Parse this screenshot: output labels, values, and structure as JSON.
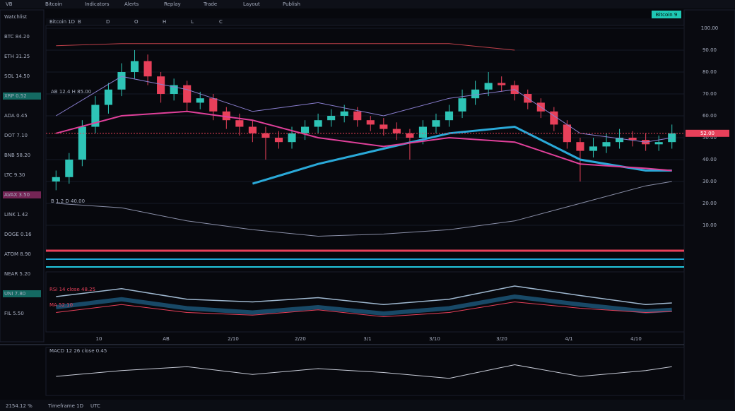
{
  "toolbar": {
    "items": [
      "VB",
      "Bitcoin",
      "Indicators",
      "Alerts",
      "Replay",
      "Trade",
      "Layout",
      "Publish"
    ],
    "badge": "Bitcoin 9"
  },
  "subbar": {
    "items": [
      "Bitcoin 1D",
      "B",
      "D",
      "O",
      "H",
      "L",
      "C"
    ]
  },
  "left_panel": {
    "rows": [
      "Watchlist",
      "BTC 84.20",
      "ETH 31.25",
      "SOL 14.50",
      "XRP 0.52",
      "ADA 0.45",
      "DOT 7.10",
      "BNB 58.20",
      "LTC 9.30",
      "AVAX 3.50",
      "LINK 1.42",
      "DOGE 0.16",
      "ATOM 8.90",
      "NEAR 5.20",
      "UNI 7.80",
      "FIL 5.50"
    ]
  },
  "chart": {
    "annotations": [
      "AB 12.4 H 85.00",
      "B 1.2 D 40.00"
    ],
    "ylim": [
      0,
      100
    ],
    "yticks": [
      {
        "value": 100,
        "label": "100.00"
      },
      {
        "value": 90,
        "label": "90.00"
      },
      {
        "value": 80,
        "label": "80.00"
      },
      {
        "value": 70,
        "label": "70.00"
      },
      {
        "value": 60,
        "label": "60.00"
      },
      {
        "value": 50,
        "label": "50.00"
      },
      {
        "value": 40,
        "label": "40.00"
      },
      {
        "value": 30,
        "label": "30.00"
      },
      {
        "value": 20,
        "label": "20.00"
      },
      {
        "value": 10,
        "label": "10.00"
      }
    ],
    "last_price": {
      "value": 52,
      "label": "52.00"
    },
    "candles": [
      [
        30,
        35,
        26,
        32
      ],
      [
        32,
        43,
        29,
        40
      ],
      [
        40,
        58,
        37,
        55
      ],
      [
        55,
        69,
        52,
        65
      ],
      [
        65,
        75,
        61,
        72
      ],
      [
        72,
        84,
        69,
        80
      ],
      [
        80,
        90,
        77,
        85
      ],
      [
        85,
        88,
        74,
        78
      ],
      [
        78,
        80,
        66,
        70
      ],
      [
        70,
        77,
        67,
        74
      ],
      [
        74,
        76,
        62,
        66
      ],
      [
        66,
        71,
        63,
        68
      ],
      [
        68,
        70,
        58,
        62
      ],
      [
        62,
        64,
        54,
        58
      ],
      [
        58,
        61,
        51,
        55
      ],
      [
        55,
        58,
        48,
        52
      ],
      [
        52,
        55,
        40,
        50
      ],
      [
        50,
        53,
        45,
        48
      ],
      [
        48,
        55,
        45,
        52
      ],
      [
        52,
        58,
        49,
        55
      ],
      [
        55,
        61,
        52,
        58
      ],
      [
        58,
        63,
        55,
        60
      ],
      [
        60,
        65,
        57,
        62
      ],
      [
        62,
        64,
        55,
        58
      ],
      [
        58,
        60,
        53,
        56
      ],
      [
        56,
        59,
        51,
        54
      ],
      [
        54,
        57,
        49,
        52
      ],
      [
        52,
        54,
        40,
        50
      ],
      [
        50,
        58,
        47,
        55
      ],
      [
        55,
        61,
        52,
        58
      ],
      [
        58,
        65,
        55,
        62
      ],
      [
        62,
        72,
        59,
        68
      ],
      [
        68,
        76,
        65,
        72
      ],
      [
        72,
        80,
        69,
        75
      ],
      [
        75,
        78,
        71,
        74
      ],
      [
        74,
        76,
        67,
        70
      ],
      [
        70,
        72,
        63,
        66
      ],
      [
        66,
        68,
        59,
        62
      ],
      [
        62,
        64,
        53,
        56
      ],
      [
        56,
        58,
        45,
        48
      ],
      [
        48,
        50,
        30,
        44
      ],
      [
        44,
        50,
        41,
        46
      ],
      [
        46,
        52,
        43,
        48
      ],
      [
        48,
        54,
        45,
        50
      ],
      [
        50,
        53,
        46,
        49
      ],
      [
        49,
        52,
        44,
        47
      ],
      [
        47,
        51,
        44,
        48
      ],
      [
        48,
        56,
        45,
        52
      ]
    ],
    "up_color": "#2ec4b6",
    "down_color": "#e8405a",
    "line_x": [
      0,
      5,
      10,
      15,
      20,
      25,
      30,
      35,
      40,
      45,
      47
    ],
    "lines": [
      {
        "color": "#2aa9d8",
        "width": 3,
        "values": [
          null,
          null,
          null,
          29,
          38,
          45,
          52,
          55,
          40,
          35,
          35
        ]
      },
      {
        "color": "#e0409a",
        "width": 2,
        "values": [
          52,
          60,
          62,
          58,
          50,
          46,
          50,
          48,
          38,
          36,
          35
        ]
      },
      {
        "color": "#c0404a",
        "width": 1,
        "values": [
          92,
          93,
          93,
          93,
          93,
          93,
          93,
          90,
          null,
          null,
          null
        ]
      },
      {
        "color": "#8a8fa8",
        "width": 1,
        "values": [
          20,
          18,
          12,
          8,
          5,
          6,
          8,
          12,
          20,
          28,
          30
        ]
      },
      {
        "color": "#8a7fd0",
        "width": 1,
        "values": [
          60,
          78,
          72,
          62,
          66,
          60,
          68,
          72,
          52,
          48,
          50
        ]
      }
    ],
    "x_labels": [
      "10",
      "AB",
      "2/10",
      "2/20",
      "3/1",
      "3/10",
      "3/20",
      "4/1",
      "4/10"
    ]
  },
  "oscillator": {
    "labels": [
      "RSI 14 close 48.25",
      "MA 52.10"
    ],
    "ylim": [
      0,
      100
    ],
    "upper": [
      60,
      75,
      55,
      50,
      58,
      45,
      55,
      80,
      62,
      45,
      48
    ],
    "lower": [
      40,
      55,
      38,
      30,
      40,
      28,
      38,
      60,
      45,
      32,
      35
    ],
    "signal": [
      30,
      45,
      30,
      25,
      35,
      22,
      30,
      50,
      38,
      30,
      32
    ],
    "fill": "#1d5a7e",
    "signal_color": "#e8405a"
  },
  "momentum": {
    "label": "MACD 12 26 close 0.45",
    "ylim": [
      -10,
      10
    ],
    "values": [
      -2,
      1,
      3,
      -1,
      2,
      0,
      -3,
      4,
      -2,
      1,
      3
    ],
    "color": "#c8ccd8"
  },
  "status_bar": {
    "items": [
      "2154.12 %",
      "Timeframe 1D",
      "UTC"
    ]
  }
}
